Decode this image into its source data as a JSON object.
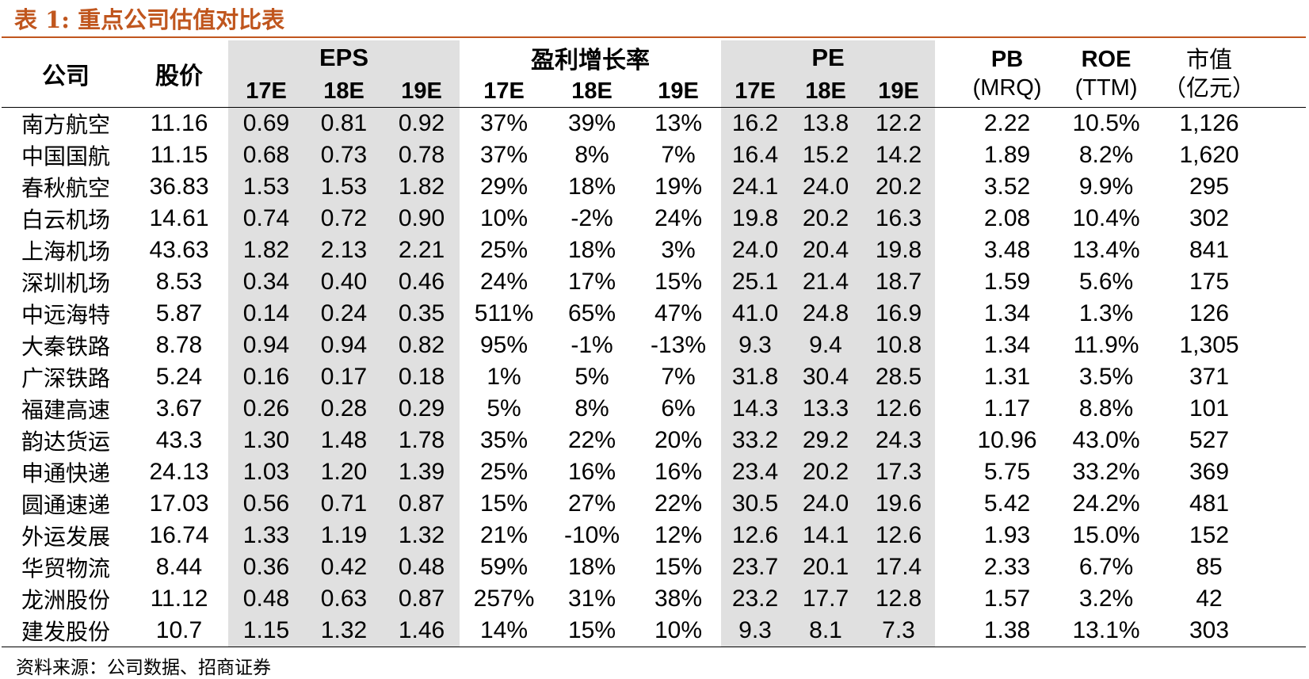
{
  "title": "表 1:  重点公司估值对比表",
  "header": {
    "company": "公司",
    "price": "股价",
    "eps": "EPS",
    "growth": "盈利增长率",
    "pe": "PE",
    "pb": "PB",
    "pb_sub": "(MRQ)",
    "roe": "ROE",
    "roe_sub": "(TTM)",
    "mcap": "市值",
    "mcap_sub": "（亿元）",
    "years": [
      "17E",
      "18E",
      "19E"
    ]
  },
  "rows": [
    {
      "name": "南方航空",
      "price": "11.16",
      "eps": [
        "0.69",
        "0.81",
        "0.92"
      ],
      "growth": [
        "37%",
        "39%",
        "13%"
      ],
      "pe": [
        "16.2",
        "13.8",
        "12.2"
      ],
      "pb": "2.22",
      "roe": "10.5%",
      "mcap": "1,126"
    },
    {
      "name": "中国国航",
      "price": "11.15",
      "eps": [
        "0.68",
        "0.73",
        "0.78"
      ],
      "growth": [
        "37%",
        "8%",
        "7%"
      ],
      "pe": [
        "16.4",
        "15.2",
        "14.2"
      ],
      "pb": "1.89",
      "roe": "8.2%",
      "mcap": "1,620"
    },
    {
      "name": "春秋航空",
      "price": "36.83",
      "eps": [
        "1.53",
        "1.53",
        "1.82"
      ],
      "growth": [
        "29%",
        "18%",
        "19%"
      ],
      "pe": [
        "24.1",
        "24.0",
        "20.2"
      ],
      "pb": "3.52",
      "roe": "9.9%",
      "mcap": "295"
    },
    {
      "name": "白云机场",
      "price": "14.61",
      "eps": [
        "0.74",
        "0.72",
        "0.90"
      ],
      "growth": [
        "10%",
        "-2%",
        "24%"
      ],
      "pe": [
        "19.8",
        "20.2",
        "16.3"
      ],
      "pb": "2.08",
      "roe": "10.4%",
      "mcap": "302"
    },
    {
      "name": "上海机场",
      "price": "43.63",
      "eps": [
        "1.82",
        "2.13",
        "2.21"
      ],
      "growth": [
        "25%",
        "18%",
        "3%"
      ],
      "pe": [
        "24.0",
        "20.4",
        "19.8"
      ],
      "pb": "3.48",
      "roe": "13.4%",
      "mcap": "841"
    },
    {
      "name": "深圳机场",
      "price": "8.53",
      "eps": [
        "0.34",
        "0.40",
        "0.46"
      ],
      "growth": [
        "24%",
        "17%",
        "15%"
      ],
      "pe": [
        "25.1",
        "21.4",
        "18.7"
      ],
      "pb": "1.59",
      "roe": "5.6%",
      "mcap": "175"
    },
    {
      "name": "中远海特",
      "price": "5.87",
      "eps": [
        "0.14",
        "0.24",
        "0.35"
      ],
      "growth": [
        "511%",
        "65%",
        "47%"
      ],
      "pe": [
        "41.0",
        "24.8",
        "16.9"
      ],
      "pb": "1.34",
      "roe": "1.3%",
      "mcap": "126"
    },
    {
      "name": "大秦铁路",
      "price": "8.78",
      "eps": [
        "0.94",
        "0.94",
        "0.82"
      ],
      "growth": [
        "95%",
        "-1%",
        "-13%"
      ],
      "pe": [
        "9.3",
        "9.4",
        "10.8"
      ],
      "pb": "1.34",
      "roe": "11.9%",
      "mcap": "1,305"
    },
    {
      "name": "广深铁路",
      "price": "5.24",
      "eps": [
        "0.16",
        "0.17",
        "0.18"
      ],
      "growth": [
        "1%",
        "5%",
        "7%"
      ],
      "pe": [
        "31.8",
        "30.4",
        "28.5"
      ],
      "pb": "1.31",
      "roe": "3.5%",
      "mcap": "371"
    },
    {
      "name": "福建高速",
      "price": "3.67",
      "eps": [
        "0.26",
        "0.28",
        "0.29"
      ],
      "growth": [
        "5%",
        "8%",
        "6%"
      ],
      "pe": [
        "14.3",
        "13.3",
        "12.6"
      ],
      "pb": "1.17",
      "roe": "8.8%",
      "mcap": "101"
    },
    {
      "name": "韵达货运",
      "price": "43.3",
      "eps": [
        "1.30",
        "1.48",
        "1.78"
      ],
      "growth": [
        "35%",
        "22%",
        "20%"
      ],
      "pe": [
        "33.2",
        "29.2",
        "24.3"
      ],
      "pb": "10.96",
      "roe": "43.0%",
      "mcap": "527"
    },
    {
      "name": "申通快递",
      "price": "24.13",
      "eps": [
        "1.03",
        "1.20",
        "1.39"
      ],
      "growth": [
        "25%",
        "16%",
        "16%"
      ],
      "pe": [
        "23.4",
        "20.2",
        "17.3"
      ],
      "pb": "5.75",
      "roe": "33.2%",
      "mcap": "369"
    },
    {
      "name": "圆通速递",
      "price": "17.03",
      "eps": [
        "0.56",
        "0.71",
        "0.87"
      ],
      "growth": [
        "15%",
        "27%",
        "22%"
      ],
      "pe": [
        "30.5",
        "24.0",
        "19.6"
      ],
      "pb": "5.42",
      "roe": "24.2%",
      "mcap": "481"
    },
    {
      "name": "外运发展",
      "price": "16.74",
      "eps": [
        "1.33",
        "1.19",
        "1.32"
      ],
      "growth": [
        "21%",
        "-10%",
        "12%"
      ],
      "pe": [
        "12.6",
        "14.1",
        "12.6"
      ],
      "pb": "1.93",
      "roe": "15.0%",
      "mcap": "152"
    },
    {
      "name": "华贸物流",
      "price": "8.44",
      "eps": [
        "0.36",
        "0.42",
        "0.48"
      ],
      "growth": [
        "59%",
        "18%",
        "15%"
      ],
      "pe": [
        "23.7",
        "20.1",
        "17.4"
      ],
      "pb": "2.33",
      "roe": "6.7%",
      "mcap": "85"
    },
    {
      "name": "龙洲股份",
      "price": "11.12",
      "eps": [
        "0.48",
        "0.63",
        "0.87"
      ],
      "growth": [
        "257%",
        "31%",
        "38%"
      ],
      "pe": [
        "23.2",
        "17.7",
        "12.8"
      ],
      "pb": "1.57",
      "roe": "3.2%",
      "mcap": "42"
    },
    {
      "name": "建发股份",
      "price": "10.7",
      "eps": [
        "1.15",
        "1.32",
        "1.46"
      ],
      "growth": [
        "14%",
        "15%",
        "10%"
      ],
      "pe": [
        "9.3",
        "8.1",
        "7.3"
      ],
      "pb": "1.38",
      "roe": "13.1%",
      "mcap": "303"
    }
  ],
  "source": "资料来源：公司数据、招商证券",
  "colors": {
    "title": "#c0561e",
    "shade": "#e0e0e0"
  }
}
